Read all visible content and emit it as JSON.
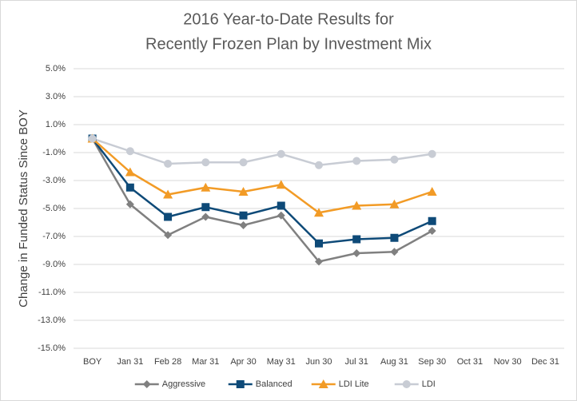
{
  "chart_data": {
    "type": "line",
    "title": [
      "2016 Year-to-Date Results for",
      "Recently Frozen Plan by Investment Mix"
    ],
    "y_label": "Change in Funded Status Since BOY",
    "categories": [
      "BOY",
      "Jan 31",
      "Feb 28",
      "Mar 31",
      "Apr 30",
      "May 31",
      "Jun 30",
      "Jul 31",
      "Aug 31",
      "Sep 30",
      "Oct 31",
      "Nov 30",
      "Dec 31"
    ],
    "series": [
      {
        "name": "Aggressive",
        "color": "#808080",
        "marker": "diamond",
        "values": [
          0,
          -4.7,
          -6.9,
          -5.6,
          -6.2,
          -5.5,
          -8.8,
          -8.2,
          -8.1,
          -6.6,
          null,
          null,
          null
        ]
      },
      {
        "name": "Balanced",
        "color": "#0e4a78",
        "marker": "square",
        "values": [
          0,
          -3.5,
          -5.6,
          -4.9,
          -5.5,
          -4.8,
          -7.5,
          -7.2,
          -7.1,
          -5.9,
          null,
          null,
          null
        ]
      },
      {
        "name": "LDI Lite",
        "color": "#f29b26",
        "marker": "triangle",
        "values": [
          0,
          -2.4,
          -4.0,
          -3.5,
          -3.8,
          -3.3,
          -5.3,
          -4.8,
          -4.7,
          -3.8,
          null,
          null,
          null
        ]
      },
      {
        "name": "LDI",
        "color": "#c8ccd4",
        "marker": "circle",
        "values": [
          0,
          -0.9,
          -1.8,
          -1.7,
          -1.7,
          -1.1,
          -1.9,
          -1.6,
          -1.5,
          -1.1,
          null,
          null,
          null
        ]
      }
    ],
    "ylim": [
      -15,
      5
    ],
    "yticks": [
      {
        "value": -15,
        "label": "-15.0%"
      },
      {
        "value": -13,
        "label": "-13.0%"
      },
      {
        "value": -11,
        "label": "-11.0%"
      },
      {
        "value": -9,
        "label": "-9.0%"
      },
      {
        "value": -7,
        "label": "-7.0%"
      },
      {
        "value": -5,
        "label": "-5.0%"
      },
      {
        "value": -3,
        "label": "-3.0%"
      },
      {
        "value": -1,
        "label": "-1.0%"
      },
      {
        "value": 1,
        "label": "1.0%"
      },
      {
        "value": 3,
        "label": "3.0%"
      },
      {
        "value": 5,
        "label": "5.0%"
      }
    ],
    "grid": true,
    "legend": "bottom"
  }
}
